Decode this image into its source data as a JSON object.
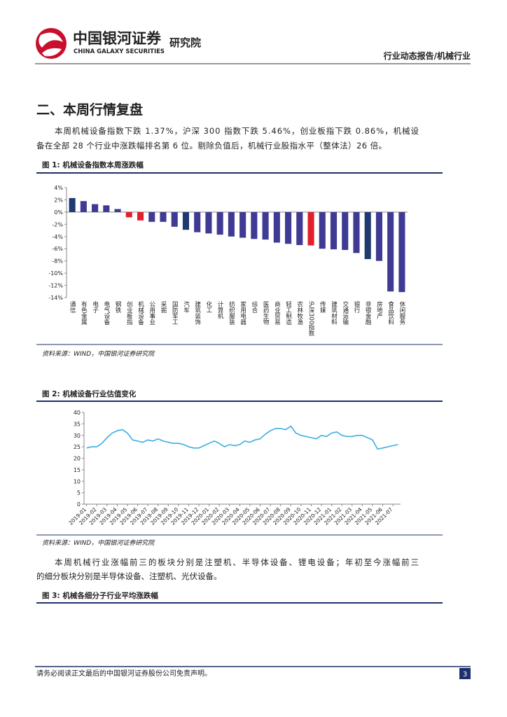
{
  "header": {
    "company_cn": "中国银河证券",
    "company_en": "CHINA GALAXY SECURITIES",
    "institute": "研究院",
    "report_type": "行业动态报告/机械行业"
  },
  "section_title": "二、本周行情复盘",
  "paragraph1": [
    "本周机械设备指数下跌 1.37%，沪深 300 指数下跌 5.46%，创业板指下跌 0.86%，机械设",
    "备在全部 28 个行业中涨跌幅排名第 6 位。剔除负值后，机械行业股指水平（整体法）26 倍。"
  ],
  "figures": [
    {
      "caption": "图 1: 机械设备指数本周涨跌幅",
      "chart_data": {
        "type": "bar",
        "categories": [
          "通信",
          "有色金属",
          "电子",
          "电气设备",
          "钢铁",
          "创业板指",
          "机械设备",
          "公用事业",
          "采掘",
          "国防军工",
          "汽车",
          "建筑装饰",
          "化工",
          "计算机",
          "纺织服装",
          "家用电器",
          "综合",
          "医药生物",
          "商业贸易",
          "轻工制造",
          "农林牧渔",
          "沪深300指数",
          "传媒",
          "建筑材料",
          "交通运输",
          "银行",
          "非银金融",
          "房地产",
          "食品饮料",
          "休闲服务"
        ],
        "values": [
          2.3,
          1.8,
          1.3,
          1.1,
          0.5,
          -0.86,
          -1.37,
          -1.6,
          -1.6,
          -2.4,
          -2.9,
          -3.3,
          -3.5,
          -3.7,
          -4.0,
          -4.2,
          -4.4,
          -4.5,
          -5.0,
          -5.2,
          -5.4,
          -5.46,
          -6.0,
          -6.1,
          -6.2,
          -6.7,
          -7.7,
          -8.0,
          -13.0,
          -13.1
        ],
        "colors": [
          "#1f3a70",
          "#3f3a93",
          "#3f3a93",
          "#3f3a93",
          "#3f3a93",
          "#e0202a",
          "#e0202a",
          "#3f3a93",
          "#3f3a93",
          "#3f3a93",
          "#1f3a70",
          "#3f3a93",
          "#3f3a93",
          "#3f3a93",
          "#3f3a93",
          "#3f3a93",
          "#3f3a93",
          "#3f3a93",
          "#3f3a93",
          "#3f3a93",
          "#3f3a93",
          "#e0202a",
          "#3f3a93",
          "#3f3a93",
          "#3f3a93",
          "#3f3a93",
          "#1f3a70",
          "#3f3a93",
          "#3f3a93",
          "#3f3a93"
        ],
        "ylim": [
          -14,
          4
        ],
        "yticks": [
          {
            "value": 4,
            "label": "4%"
          },
          {
            "value": 2,
            "label": "2%"
          },
          {
            "value": 0,
            "label": "0%"
          },
          {
            "value": -2,
            "label": "-2%"
          },
          {
            "value": -4,
            "label": "-4%"
          },
          {
            "value": -6,
            "label": "-6%"
          },
          {
            "value": -8,
            "label": "-8%"
          },
          {
            "value": -10,
            "label": "-10%"
          },
          {
            "value": -12,
            "label": "-12%"
          },
          {
            "value": -14,
            "label": "-14%"
          }
        ]
      },
      "source": "资料来源：WIND，中国银河证券研究院"
    },
    {
      "caption": "图 2: 机械设备行业估值变化",
      "chart_data": {
        "type": "line",
        "categories": [
          "2019-01",
          null,
          "2019-02",
          null,
          "2019-03",
          null,
          "2019-04",
          null,
          "2019-05",
          null,
          "2019-06",
          null,
          "2019-07",
          null,
          "2019-08",
          null,
          "2019-09",
          null,
          "2019-10",
          null,
          "2019-11",
          null,
          "2019-12",
          null,
          "2020-01",
          null,
          "2020-02",
          null,
          "2020-03",
          null,
          "2020-04",
          null,
          "2020-05",
          null,
          "2020-06",
          null,
          "2020-07",
          null,
          "2020-08",
          null,
          "2020-09",
          null,
          "2020-10",
          null,
          "2020-11",
          null,
          "2020-12",
          null,
          "2021-01",
          null,
          "2021-02",
          null,
          "2021-03",
          null,
          "2021-04",
          null,
          "2021-05",
          null,
          "2021-06",
          null,
          "2021-07",
          null
        ],
        "values": [
          24.5,
          25,
          25,
          26.5,
          29,
          31,
          32,
          32.5,
          31,
          28,
          27.5,
          27,
          28,
          27.5,
          28.5,
          27.5,
          27,
          26.5,
          26.5,
          26,
          25,
          24.5,
          24.5,
          25.5,
          26.5,
          27.5,
          26.5,
          25,
          26,
          25.5,
          26,
          27.5,
          27,
          28,
          28.5,
          30.5,
          32,
          33,
          33,
          32.5,
          34,
          31,
          30,
          29.5,
          29,
          28.5,
          30,
          29.5,
          31,
          31.5,
          30,
          29.5,
          29.5,
          30,
          30,
          29,
          28,
          24,
          24.5,
          25,
          25.5,
          26
        ],
        "color": "#3aaee0",
        "ylim": [
          0,
          40
        ],
        "yticks": [
          0,
          5,
          10,
          15,
          20,
          25,
          30,
          35,
          40
        ]
      },
      "source": "资料来源：WIND，中国银河证券研究院"
    }
  ],
  "paragraph2": [
    "本周机械行业涨幅前三的板块分别是注塑机、半导体设备、锂电设备；年初至今涨幅前三",
    "的细分板块分别是半导体设备、注塑机、光伏设备。"
  ],
  "figure3_caption": "图 3: 机械各细分子行业平均涨跌幅",
  "footer": {
    "disclaimer": "请务必阅读正文最后的中国银河证券股份公司免责声明。",
    "page": "3"
  }
}
